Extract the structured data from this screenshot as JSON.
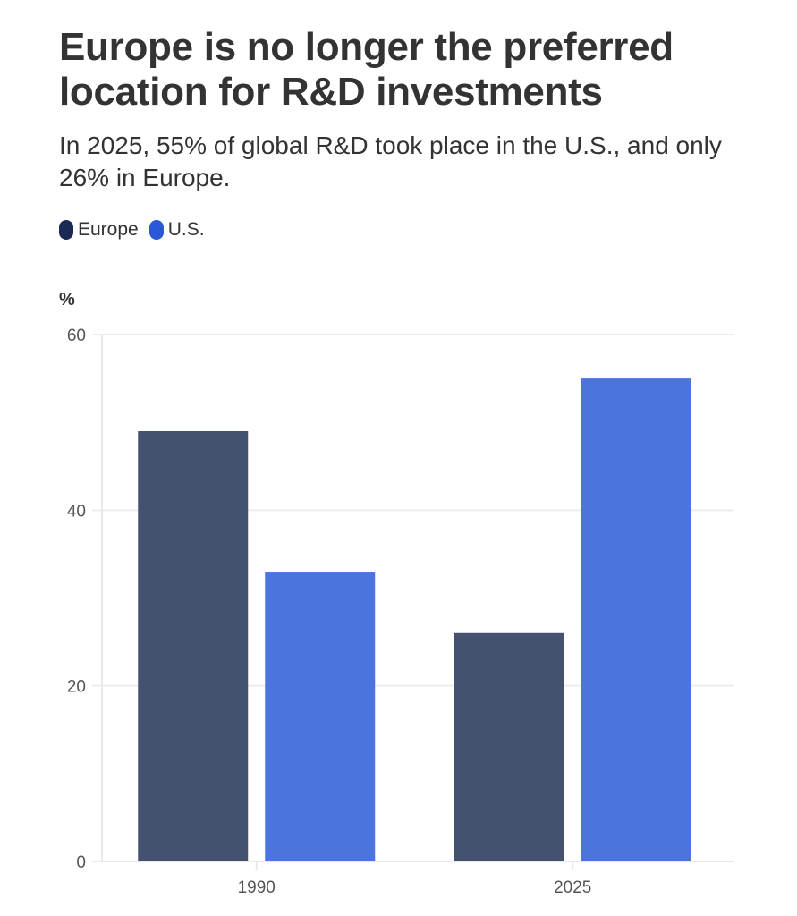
{
  "header": {
    "title": "Europe is no longer the preferred location for R&D investments",
    "subtitle": "In 2025, 55% of global R&D took place in the U.S., and only 26% in Europe."
  },
  "legend": [
    {
      "label": "Europe",
      "color": "#1b2a55"
    },
    {
      "label": "U.S.",
      "color": "#2b58d6"
    }
  ],
  "chart_data": {
    "type": "bar",
    "title": "Europe is no longer the preferred location for R&D investments",
    "subtitle": "In 2025, 55% of global R&D took place in the U.S., and only 26% in Europe.",
    "xlabel": "",
    "ylabel": "%",
    "categories": [
      "1990",
      "2025"
    ],
    "series": [
      {
        "name": "Europe",
        "values": [
          49,
          26
        ],
        "color": "#44516f"
      },
      {
        "name": "U.S.",
        "values": [
          33,
          55
        ],
        "color": "#4b75dc"
      }
    ],
    "ylim": [
      0,
      60
    ],
    "yticks": [
      0,
      20,
      40,
      60
    ],
    "ytick_labels": [
      "0",
      "20",
      "40",
      "60"
    ],
    "grid": true,
    "legend_position": "top-left"
  }
}
